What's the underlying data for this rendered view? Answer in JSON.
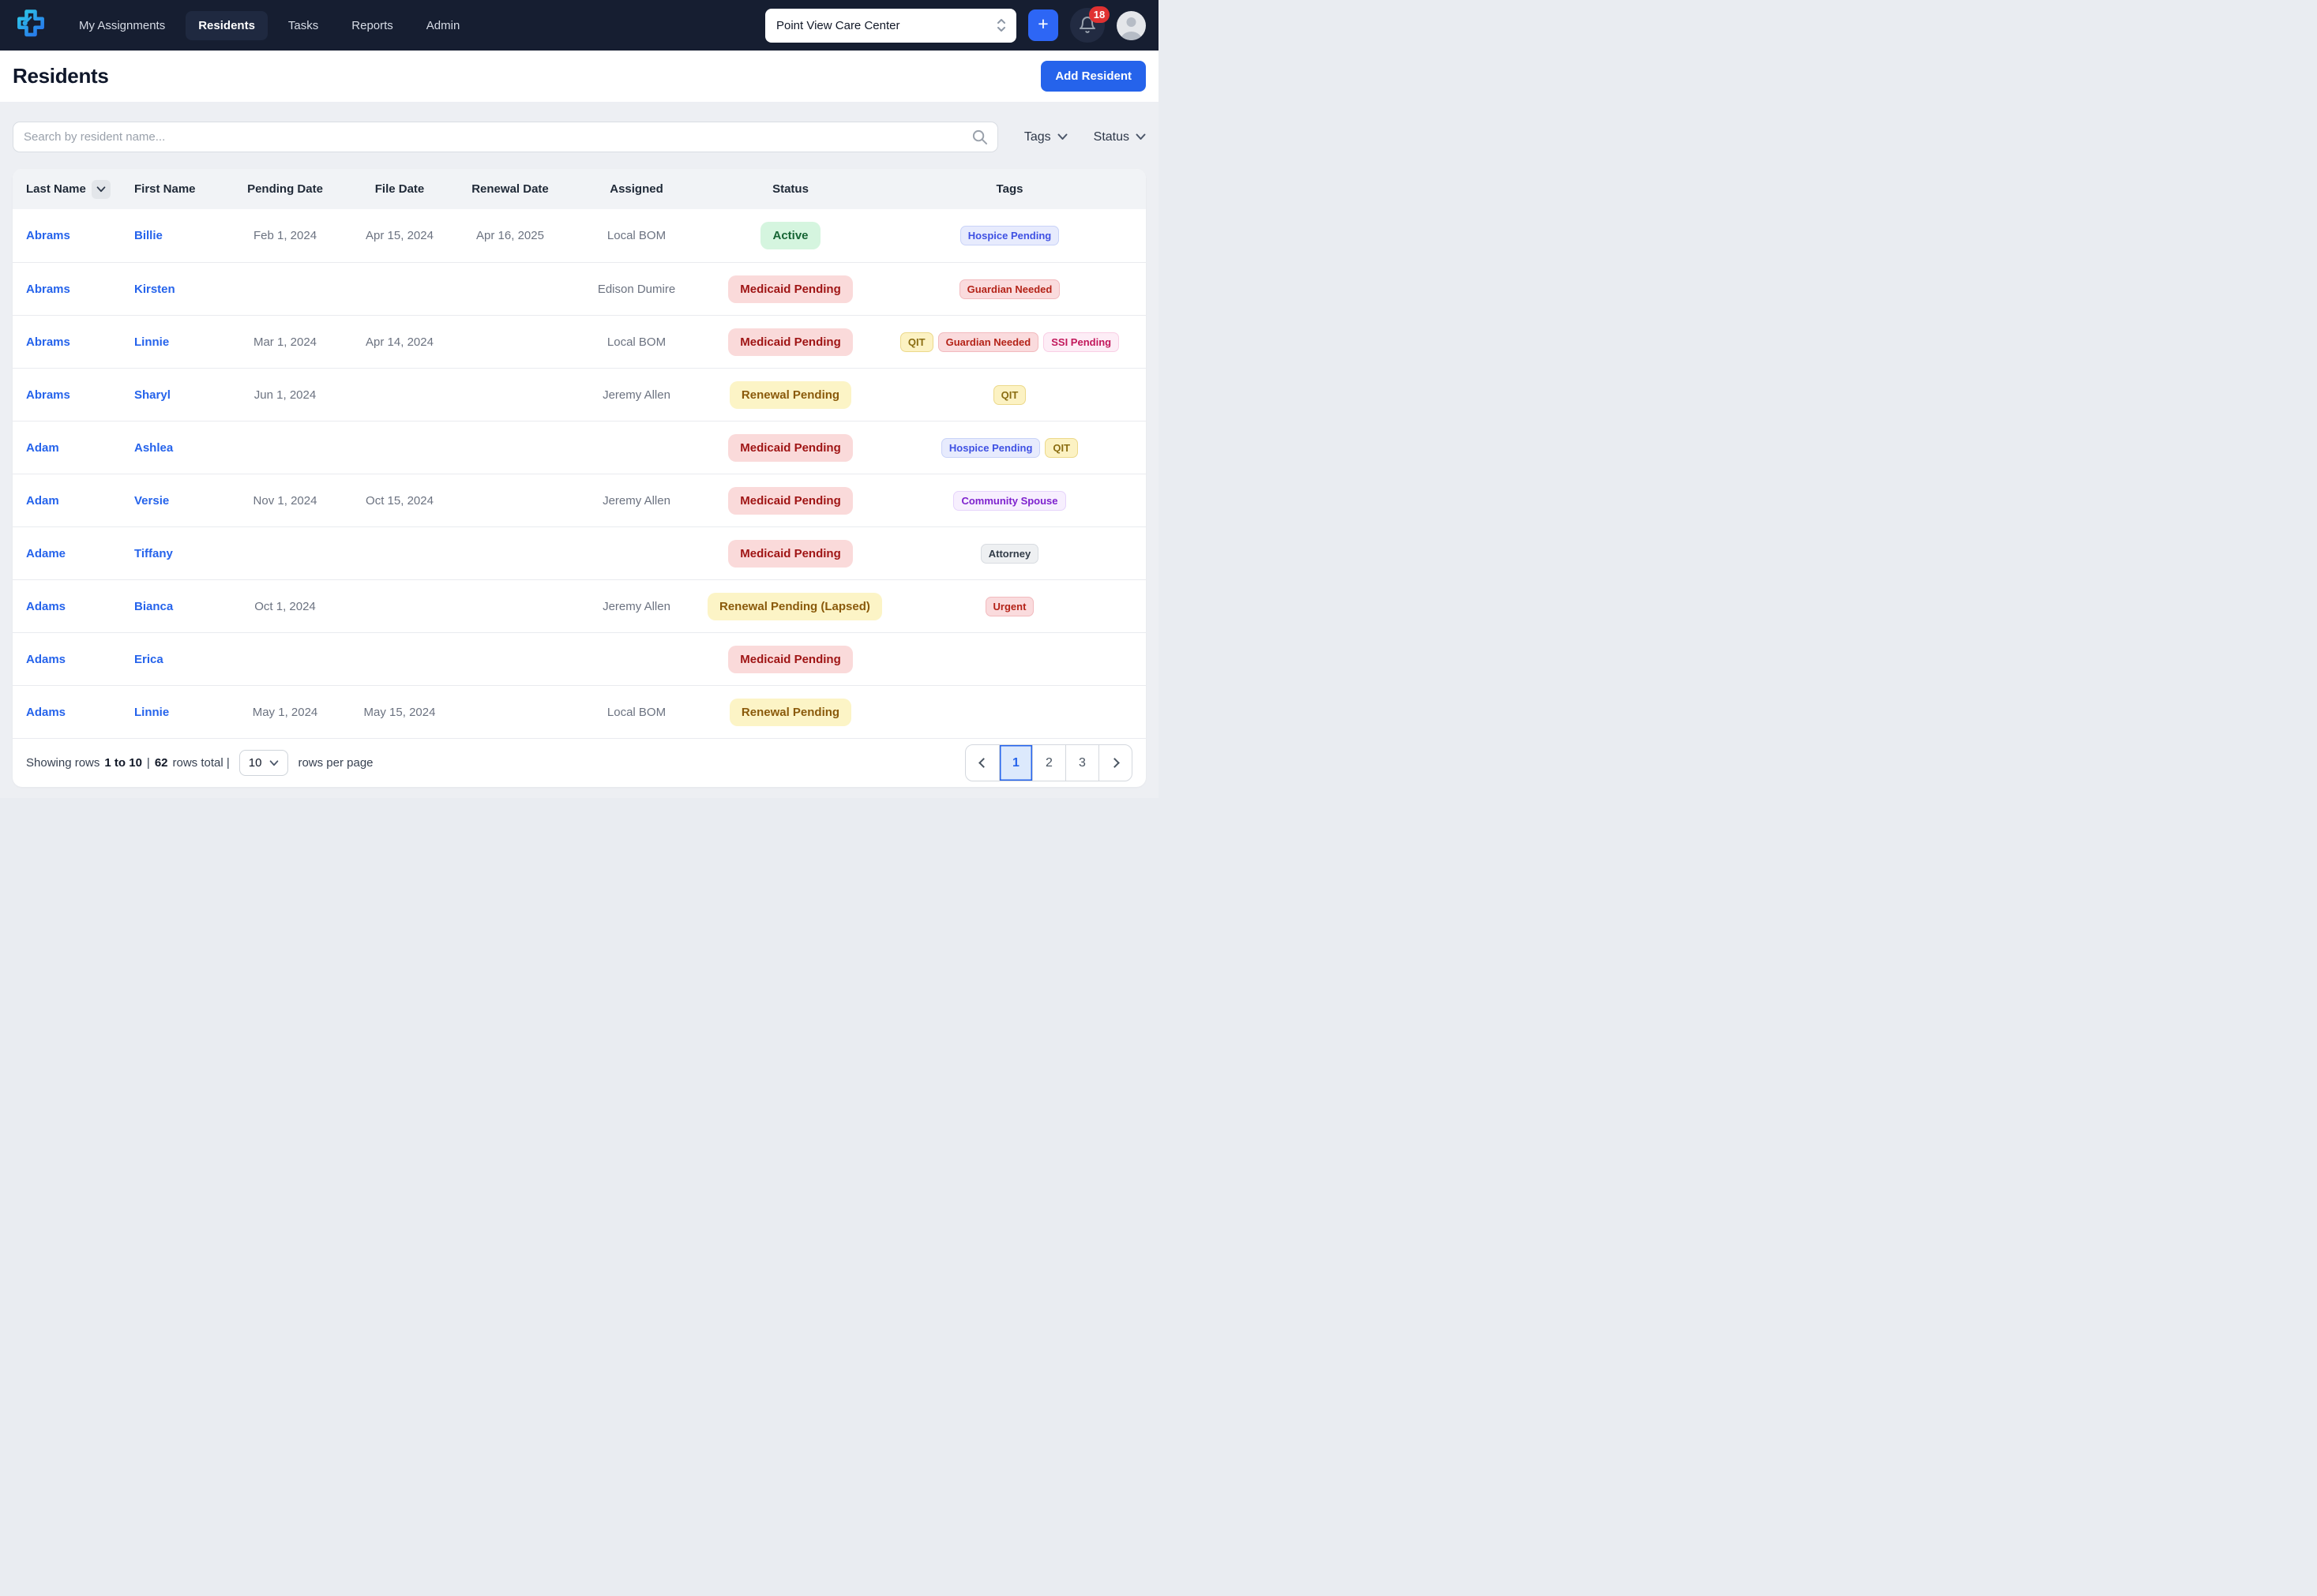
{
  "nav": {
    "items": [
      {
        "label": "My Assignments",
        "active": false
      },
      {
        "label": "Residents",
        "active": true
      },
      {
        "label": "Tasks",
        "active": false
      },
      {
        "label": "Reports",
        "active": false
      },
      {
        "label": "Admin",
        "active": false
      }
    ],
    "facility_selector_value": "Point View Care Center",
    "quick_add_label": "+",
    "notification_count": "18"
  },
  "page": {
    "title": "Residents",
    "add_resident_label": "Add Resident"
  },
  "filters": {
    "search_placeholder": "Search by resident name...",
    "tags_label": "Tags",
    "status_label": "Status"
  },
  "table": {
    "columns": [
      "Last Name",
      "First Name",
      "Pending Date",
      "File Date",
      "Renewal Date",
      "Assigned",
      "Status",
      "Tags"
    ],
    "rows": [
      {
        "last": "Abrams",
        "first": "Billie",
        "pending": "Feb 1, 2024",
        "file": "Apr 15, 2024",
        "renewal": "Apr 16, 2025",
        "assigned": "Local BOM",
        "status": {
          "label": "Active",
          "type": "active"
        },
        "tags": [
          {
            "label": "Hospice Pending",
            "type": "indigo"
          }
        ]
      },
      {
        "last": "Abrams",
        "first": "Kirsten",
        "pending": "",
        "file": "",
        "renewal": "",
        "assigned": "Edison Dumire",
        "status": {
          "label": "Medicaid Pending",
          "type": "medicaid"
        },
        "tags": [
          {
            "label": "Guardian Needed",
            "type": "red"
          }
        ]
      },
      {
        "last": "Abrams",
        "first": "Linnie",
        "pending": "Mar 1, 2024",
        "file": "Apr 14, 2024",
        "renewal": "",
        "assigned": "Local BOM",
        "status": {
          "label": "Medicaid Pending",
          "type": "medicaid"
        },
        "tags": [
          {
            "label": "QIT",
            "type": "yellow"
          },
          {
            "label": "Guardian Needed",
            "type": "red"
          },
          {
            "label": "SSI Pending",
            "type": "pink"
          }
        ]
      },
      {
        "last": "Abrams",
        "first": "Sharyl",
        "pending": "Jun 1, 2024",
        "file": "",
        "renewal": "",
        "assigned": "Jeremy Allen",
        "status": {
          "label": "Renewal Pending",
          "type": "renewal"
        },
        "tags": [
          {
            "label": "QIT",
            "type": "yellow"
          }
        ]
      },
      {
        "last": "Adam",
        "first": "Ashlea",
        "pending": "",
        "file": "",
        "renewal": "",
        "assigned": "",
        "status": {
          "label": "Medicaid Pending",
          "type": "medicaid"
        },
        "tags": [
          {
            "label": "Hospice Pending",
            "type": "indigo"
          },
          {
            "label": "QIT",
            "type": "yellow"
          }
        ]
      },
      {
        "last": "Adam",
        "first": "Versie",
        "pending": "Nov 1, 2024",
        "file": "Oct 15, 2024",
        "renewal": "",
        "assigned": "Jeremy Allen",
        "status": {
          "label": "Medicaid Pending",
          "type": "medicaid"
        },
        "tags": [
          {
            "label": "Community Spouse",
            "type": "purple"
          }
        ]
      },
      {
        "last": "Adame",
        "first": "Tiffany",
        "pending": "",
        "file": "",
        "renewal": "",
        "assigned": "",
        "status": {
          "label": "Medicaid Pending",
          "type": "medicaid"
        },
        "tags": [
          {
            "label": "Attorney",
            "type": "gray"
          }
        ]
      },
      {
        "last": "Adams",
        "first": "Bianca",
        "pending": "Oct 1, 2024",
        "file": "",
        "renewal": "",
        "assigned": "Jeremy Allen",
        "status": {
          "label": "Renewal Pending (Lapsed)",
          "type": "renewal"
        },
        "tags": [
          {
            "label": "Urgent",
            "type": "red"
          }
        ]
      },
      {
        "last": "Adams",
        "first": "Erica",
        "pending": "",
        "file": "",
        "renewal": "",
        "assigned": "",
        "status": {
          "label": "Medicaid Pending",
          "type": "medicaid"
        },
        "tags": []
      },
      {
        "last": "Adams",
        "first": "Linnie",
        "pending": "May 1, 2024",
        "file": "May 15, 2024",
        "renewal": "",
        "assigned": "Local BOM",
        "status": {
          "label": "Renewal Pending",
          "type": "renewal"
        },
        "tags": []
      }
    ]
  },
  "footer": {
    "prefix": "Showing rows",
    "range": "1 to 10",
    "sep": "|",
    "total": "62",
    "total_suffix": "rows total |",
    "per_page_value": "10",
    "per_page_suffix": "rows per page"
  },
  "pagination": {
    "pages": [
      "1",
      "2",
      "3"
    ],
    "active_page": "1"
  },
  "colors": {
    "accent_blue": "#2563eb",
    "nav_background": "#161e31",
    "status_active_bg": "#d5f5df",
    "status_active_text": "#166534",
    "status_medicaid_bg": "#fadada",
    "status_medicaid_text": "#9f1414",
    "status_renewal_bg": "#fcf4c6",
    "status_renewal_text": "#8a5a0b",
    "notification_badge": "#e03131"
  }
}
